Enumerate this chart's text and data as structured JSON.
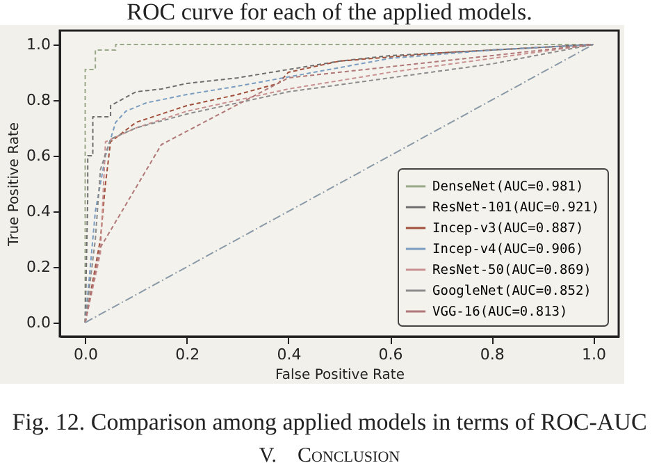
{
  "chart_data": {
    "type": "line",
    "xlabel": "False Positive Rate",
    "ylabel": "True Positive Rate",
    "annotations": [
      "ROC curve for each of the applied models.",
      "Fig. 12. Comparison among applied models in terms of ROC-AUC",
      "V.    Conclusion"
    ],
    "xlim": [
      -0.05,
      1.05
    ],
    "ylim": [
      -0.05,
      1.05
    ],
    "xticks": [
      {
        "value": 0,
        "label": "0.0"
      },
      {
        "value": 0.2,
        "label": "0.2"
      },
      {
        "value": 0.4,
        "label": "0.4"
      },
      {
        "value": 0.6,
        "label": "0.6"
      },
      {
        "value": 0.8,
        "label": "0.8"
      },
      {
        "value": 1,
        "label": "1.0"
      }
    ],
    "yticks": [
      {
        "value": 0,
        "label": "0.0"
      },
      {
        "value": 0.2,
        "label": "0.2"
      },
      {
        "value": 0.4,
        "label": "0.4"
      },
      {
        "value": 0.6,
        "label": "0.6"
      },
      {
        "value": 0.8,
        "label": "0.8"
      },
      {
        "value": 1,
        "label": "1.0"
      }
    ],
    "legend": "bottom right",
    "line_style": "dashed",
    "grid": false,
    "series": [
      {
        "name": "DenseNet(AUC=0.981)",
        "color": "#9aa88a",
        "x": [
          0,
          0,
          0,
          0.02,
          0.02,
          0.06,
          0.06,
          1
        ],
        "values": [
          0,
          0.5,
          0.91,
          0.91,
          0.98,
          0.98,
          1,
          1
        ]
      },
      {
        "name": "ResNet-101(AUC=0.921)",
        "color": "#6e6e6e",
        "x": [
          0,
          0.005,
          0.005,
          0.015,
          0.015,
          0.05,
          0.05,
          0.1,
          0.15,
          0.2,
          0.3,
          0.4,
          0.5,
          0.6,
          0.8,
          1
        ],
        "values": [
          0,
          0.45,
          0.6,
          0.6,
          0.74,
          0.74,
          0.78,
          0.83,
          0.84,
          0.86,
          0.88,
          0.91,
          0.94,
          0.96,
          0.98,
          1
        ]
      },
      {
        "name": "Incep-v3(AUC=0.887)",
        "color": "#a0503c",
        "x": [
          0,
          0.03,
          0.04,
          0.05,
          0.1,
          0.2,
          0.3,
          0.38,
          0.4,
          0.5,
          0.7,
          1
        ],
        "values": [
          0,
          0.3,
          0.5,
          0.65,
          0.72,
          0.78,
          0.82,
          0.86,
          0.9,
          0.94,
          0.97,
          1
        ]
      },
      {
        "name": "Incep-v4(AUC=0.906)",
        "color": "#7a9cc0",
        "x": [
          0,
          0.02,
          0.04,
          0.06,
          0.08,
          0.12,
          0.2,
          0.3,
          0.45,
          0.6,
          0.8,
          1
        ],
        "values": [
          0,
          0.4,
          0.6,
          0.72,
          0.76,
          0.79,
          0.82,
          0.85,
          0.9,
          0.95,
          0.98,
          1
        ]
      },
      {
        "name": "ResNet-50(AUC=0.869)",
        "color": "#c89090",
        "x": [
          0,
          0.03,
          0.04,
          0.1,
          0.2,
          0.3,
          0.4,
          0.6,
          0.8,
          1
        ],
        "values": [
          0,
          0.25,
          0.65,
          0.7,
          0.76,
          0.8,
          0.84,
          0.9,
          0.95,
          1
        ]
      },
      {
        "name": "GoogleNet(AUC=0.852)",
        "color": "#8c8c8c",
        "x": [
          0,
          0.02,
          0.03,
          0.05,
          0.1,
          0.2,
          0.3,
          0.4,
          0.6,
          0.8,
          1
        ],
        "values": [
          0,
          0.3,
          0.55,
          0.66,
          0.7,
          0.75,
          0.79,
          0.83,
          0.88,
          0.93,
          1
        ]
      },
      {
        "name": "VGG-16(AUC=0.813)",
        "color": "#b07878",
        "x": [
          0,
          0.03,
          0.15,
          0.4,
          1
        ],
        "values": [
          0,
          0.27,
          0.64,
          0.88,
          1
        ]
      },
      {
        "color": "#8a9aa8",
        "x": [
          0,
          1
        ],
        "values": [
          0,
          1
        ]
      }
    ]
  }
}
